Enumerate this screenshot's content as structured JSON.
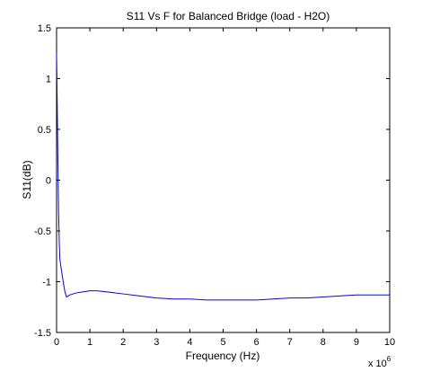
{
  "chart_data": {
    "type": "line",
    "title": "S11 Vs F for Balanced Bridge (load - H2O)",
    "xlabel": "Frequency (Hz)",
    "ylabel": "S11(dB)",
    "x_multiplier_label": "x 10",
    "x_multiplier_exponent": "6",
    "xlim": [
      0,
      10
    ],
    "ylim": [
      -1.5,
      1.5
    ],
    "xticks": [
      0,
      1,
      2,
      3,
      4,
      5,
      6,
      7,
      8,
      9,
      10
    ],
    "xtick_labels": [
      "0",
      "1",
      "2",
      "3",
      "4",
      "5",
      "6",
      "7",
      "8",
      "9",
      "10"
    ],
    "yticks": [
      -1.5,
      -1,
      -0.5,
      0,
      0.5,
      1,
      1.5
    ],
    "ytick_labels": [
      "-1.5",
      "-1",
      "-0.5",
      "0",
      "0.5",
      "1",
      "1.5"
    ],
    "grid": false,
    "series": [
      {
        "color": "#0000ff",
        "x": [
          0.0,
          0.02,
          0.04,
          0.06,
          0.08,
          0.1,
          0.13,
          0.16,
          0.2,
          0.25,
          0.3,
          0.35,
          0.4,
          0.5,
          0.6,
          0.8,
          1.0,
          1.2,
          1.5,
          2.0,
          2.5,
          3.0,
          3.5,
          4.0,
          4.5,
          5.0,
          5.5,
          6.0,
          6.5,
          7.0,
          7.5,
          8.0,
          8.5,
          9.0,
          9.5,
          10.0
        ],
        "y": [
          1.25,
          0.75,
          0.2,
          -0.3,
          -0.6,
          -0.78,
          -0.85,
          -0.92,
          -1.0,
          -1.1,
          -1.15,
          -1.14,
          -1.13,
          -1.12,
          -1.11,
          -1.1,
          -1.09,
          -1.09,
          -1.1,
          -1.12,
          -1.14,
          -1.16,
          -1.17,
          -1.17,
          -1.18,
          -1.18,
          -1.18,
          -1.18,
          -1.17,
          -1.16,
          -1.16,
          -1.15,
          -1.14,
          -1.13,
          -1.13,
          -1.13
        ]
      }
    ]
  }
}
